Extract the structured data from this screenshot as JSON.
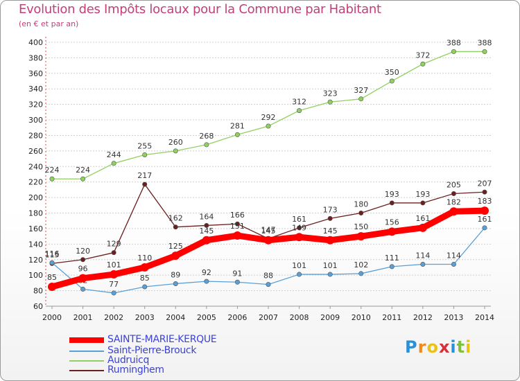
{
  "title": "Evolution des Impôts locaux pour la Commune par Habitant",
  "subtitle": "(en € et par an)",
  "logo": "Proxiti",
  "chart_data": {
    "type": "line",
    "x": [
      "2000",
      "2001",
      "2002",
      "2003",
      "2004",
      "2005",
      "2006",
      "2007",
      "2008",
      "2009",
      "2010",
      "2011",
      "2012",
      "2013",
      "2014"
    ],
    "ylim": [
      60,
      400
    ],
    "yticks": [
      60,
      80,
      100,
      120,
      140,
      160,
      180,
      200,
      220,
      240,
      260,
      280,
      300,
      320,
      340,
      360,
      380,
      400
    ],
    "grid": "horizontal",
    "legend_position": "bottom-left",
    "series": [
      {
        "name": "SAINTE-MARIE-KERQUE",
        "color": "#ff0000",
        "values": [
          85,
          96,
          101,
          110,
          125,
          145,
          151,
          145,
          149,
          145,
          150,
          156,
          161,
          182,
          183
        ]
      },
      {
        "name": "Saint-Pierre-Brouck",
        "color": "#5a9fd6",
        "values": [
          116,
          82,
          77,
          85,
          89,
          92,
          91,
          88,
          101,
          101,
          102,
          111,
          114,
          114,
          161
        ]
      },
      {
        "name": "Audruicq",
        "color": "#90d060",
        "values": [
          224,
          224,
          244,
          255,
          260,
          268,
          281,
          292,
          312,
          323,
          327,
          350,
          372,
          388,
          388
        ]
      },
      {
        "name": "Ruminghem",
        "color": "#6b1f1f",
        "values": [
          115,
          120,
          129,
          217,
          162,
          164,
          166,
          147,
          161,
          173,
          180,
          193,
          193,
          205,
          207
        ]
      }
    ]
  }
}
